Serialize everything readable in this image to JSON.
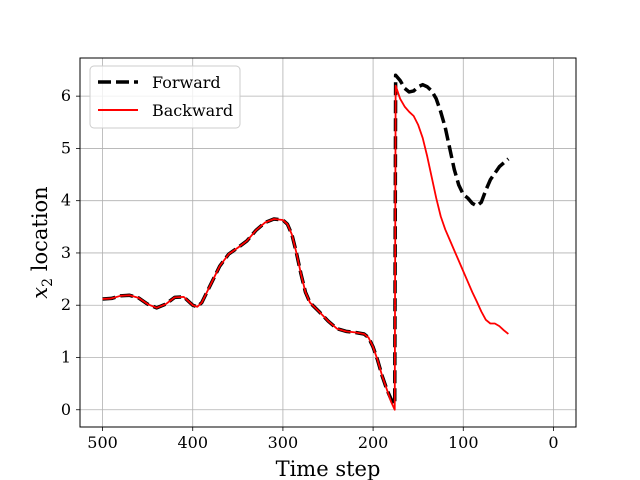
{
  "chart_data": {
    "type": "line",
    "xlabel": "Time step",
    "ylabel_main": "x",
    "ylabel_sub": "2",
    "ylabel_rest": " location",
    "xlim": [
      525,
      -25
    ],
    "ylim": [
      -0.33,
      6.73
    ],
    "x_reversed": true,
    "xticks": [
      500,
      400,
      300,
      200,
      100,
      0
    ],
    "yticks": [
      0,
      1,
      2,
      3,
      4,
      5,
      6
    ],
    "grid": true,
    "legend_position": "upper-left",
    "series": [
      {
        "name": "Forward",
        "color": "#000000",
        "style": "dashed",
        "points": [
          [
            500,
            2.12
          ],
          [
            490,
            2.13
          ],
          [
            480,
            2.18
          ],
          [
            470,
            2.19
          ],
          [
            460,
            2.14
          ],
          [
            450,
            2.02
          ],
          [
            440,
            1.95
          ],
          [
            430,
            2.02
          ],
          [
            420,
            2.15
          ],
          [
            410,
            2.16
          ],
          [
            400,
            2.0
          ],
          [
            395,
            1.97
          ],
          [
            390,
            2.05
          ],
          [
            380,
            2.4
          ],
          [
            370,
            2.75
          ],
          [
            360,
            2.98
          ],
          [
            350,
            3.1
          ],
          [
            340,
            3.23
          ],
          [
            330,
            3.43
          ],
          [
            320,
            3.58
          ],
          [
            310,
            3.65
          ],
          [
            300,
            3.63
          ],
          [
            295,
            3.55
          ],
          [
            290,
            3.35
          ],
          [
            285,
            3.0
          ],
          [
            280,
            2.6
          ],
          [
            275,
            2.25
          ],
          [
            270,
            2.05
          ],
          [
            260,
            1.88
          ],
          [
            250,
            1.7
          ],
          [
            240,
            1.55
          ],
          [
            230,
            1.5
          ],
          [
            220,
            1.48
          ],
          [
            210,
            1.45
          ],
          [
            205,
            1.38
          ],
          [
            200,
            1.2
          ],
          [
            195,
            0.95
          ],
          [
            190,
            0.65
          ],
          [
            185,
            0.4
          ],
          [
            180,
            0.2
          ],
          [
            176,
            0.1
          ],
          [
            175,
            6.4
          ],
          [
            170,
            6.3
          ],
          [
            165,
            6.15
          ],
          [
            160,
            6.08
          ],
          [
            155,
            6.1
          ],
          [
            150,
            6.18
          ],
          [
            145,
            6.22
          ],
          [
            140,
            6.18
          ],
          [
            135,
            6.1
          ],
          [
            130,
            5.95
          ],
          [
            125,
            5.7
          ],
          [
            120,
            5.4
          ],
          [
            115,
            5.0
          ],
          [
            110,
            4.6
          ],
          [
            105,
            4.3
          ],
          [
            100,
            4.12
          ],
          [
            95,
            4.05
          ],
          [
            90,
            3.95
          ],
          [
            85,
            3.9
          ],
          [
            80,
            3.97
          ],
          [
            75,
            4.2
          ],
          [
            70,
            4.4
          ],
          [
            60,
            4.65
          ],
          [
            50,
            4.8
          ]
        ]
      },
      {
        "name": "Backward",
        "color": "#ff0000",
        "style": "solid",
        "points": [
          [
            500,
            2.12
          ],
          [
            490,
            2.13
          ],
          [
            480,
            2.18
          ],
          [
            470,
            2.19
          ],
          [
            460,
            2.14
          ],
          [
            450,
            2.02
          ],
          [
            440,
            1.95
          ],
          [
            430,
            2.02
          ],
          [
            420,
            2.15
          ],
          [
            410,
            2.16
          ],
          [
            400,
            2.0
          ],
          [
            395,
            1.97
          ],
          [
            390,
            2.05
          ],
          [
            380,
            2.4
          ],
          [
            370,
            2.75
          ],
          [
            360,
            2.98
          ],
          [
            350,
            3.1
          ],
          [
            340,
            3.23
          ],
          [
            330,
            3.43
          ],
          [
            320,
            3.58
          ],
          [
            310,
            3.65
          ],
          [
            300,
            3.63
          ],
          [
            295,
            3.55
          ],
          [
            290,
            3.35
          ],
          [
            285,
            3.0
          ],
          [
            280,
            2.6
          ],
          [
            275,
            2.25
          ],
          [
            270,
            2.05
          ],
          [
            260,
            1.88
          ],
          [
            250,
            1.7
          ],
          [
            240,
            1.55
          ],
          [
            230,
            1.5
          ],
          [
            220,
            1.48
          ],
          [
            210,
            1.45
          ],
          [
            205,
            1.38
          ],
          [
            200,
            1.2
          ],
          [
            195,
            0.95
          ],
          [
            190,
            0.65
          ],
          [
            185,
            0.4
          ],
          [
            180,
            0.15
          ],
          [
            176,
            0.0
          ],
          [
            175,
            6.2
          ],
          [
            170,
            5.95
          ],
          [
            165,
            5.8
          ],
          [
            160,
            5.7
          ],
          [
            155,
            5.62
          ],
          [
            150,
            5.45
          ],
          [
            145,
            5.2
          ],
          [
            140,
            4.85
          ],
          [
            135,
            4.45
          ],
          [
            130,
            4.05
          ],
          [
            125,
            3.7
          ],
          [
            120,
            3.45
          ],
          [
            115,
            3.25
          ],
          [
            110,
            3.05
          ],
          [
            105,
            2.85
          ],
          [
            100,
            2.65
          ],
          [
            95,
            2.45
          ],
          [
            90,
            2.25
          ],
          [
            85,
            2.07
          ],
          [
            80,
            1.88
          ],
          [
            75,
            1.72
          ],
          [
            70,
            1.65
          ],
          [
            65,
            1.65
          ],
          [
            60,
            1.6
          ],
          [
            55,
            1.52
          ],
          [
            50,
            1.45
          ]
        ]
      }
    ]
  }
}
